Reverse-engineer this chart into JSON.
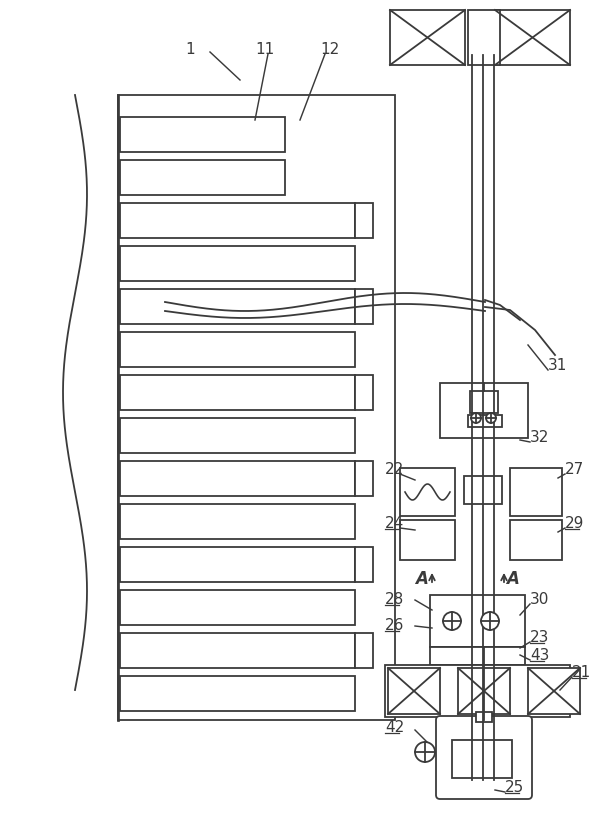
{
  "bg_color": "#ffffff",
  "line_color": "#3a3a3a",
  "lw": 1.3,
  "fig_width": 6.14,
  "fig_height": 8.13
}
